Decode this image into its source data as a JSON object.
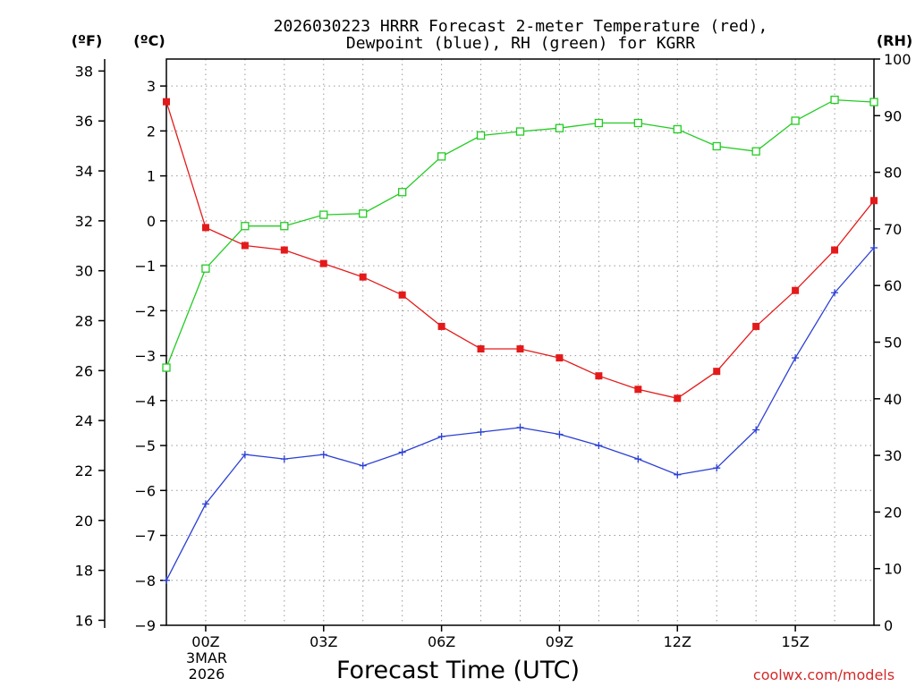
{
  "chart_data": {
    "type": "line",
    "title": [
      "2026030223 HRRR Forecast 2-meter Temperature (red),",
      "Dewpoint (blue), RH (green) for KGRR"
    ],
    "xlabel": "Forecast Time (UTC)",
    "credit": "coolwx.com/models",
    "date_label": [
      "3MAR",
      "2026"
    ],
    "axis_units": {
      "left_f": "(ºF)",
      "left_c": "(ºC)",
      "right_rh": "(RH)"
    },
    "x_hours": [
      -1,
      0,
      1,
      2,
      3,
      4,
      5,
      6,
      7,
      8,
      9,
      10,
      11,
      12,
      13,
      14,
      15,
      16,
      17
    ],
    "xlim": [
      -1,
      17
    ],
    "x_ticks": [
      {
        "hour": 0,
        "label": "00Z"
      },
      {
        "hour": 3,
        "label": "03Z"
      },
      {
        "hour": 6,
        "label": "06Z"
      },
      {
        "hour": 9,
        "label": "09Z"
      },
      {
        "hour": 12,
        "label": "12Z"
      },
      {
        "hour": 15,
        "label": "15Z"
      }
    ],
    "ylim_c": [
      -9,
      3.6
    ],
    "ylim_f": [
      15.8,
      38.48
    ],
    "ylim_rh": [
      0,
      100
    ],
    "yticks_c": [
      "3",
      "2",
      "1",
      "0",
      "−1",
      "−2",
      "−3",
      "−4",
      "−5",
      "−6",
      "−7",
      "−8",
      "−9"
    ],
    "yticks_f": [
      "38",
      "36",
      "34",
      "32",
      "30",
      "28",
      "26",
      "24",
      "22",
      "20",
      "18",
      "16"
    ],
    "yticks_rh": [
      "100",
      "90",
      "80",
      "70",
      "60",
      "50",
      "40",
      "30",
      "20",
      "10",
      "0"
    ],
    "series": [
      {
        "name": "Temperature",
        "unit": "C",
        "color": "#e41a1a",
        "marker": "filled-square",
        "values": [
          2.65,
          -0.15,
          -0.55,
          -0.65,
          -0.95,
          -1.25,
          -1.65,
          -2.35,
          -2.85,
          -2.85,
          -3.05,
          -3.45,
          -3.75,
          -3.95,
          -3.35,
          -2.35,
          -1.55,
          -0.65,
          0.45
        ]
      },
      {
        "name": "Dewpoint",
        "unit": "C",
        "color": "#2b3fd4",
        "marker": "plus",
        "values": [
          -8.0,
          -6.3,
          -5.2,
          -5.3,
          -5.2,
          -5.45,
          -5.15,
          -4.8,
          -4.7,
          -4.6,
          -4.75,
          -5.0,
          -5.3,
          -5.65,
          -5.5,
          -4.65,
          -3.05,
          -1.6,
          -0.6
        ]
      },
      {
        "name": "RH",
        "unit": "%",
        "color": "#22cc22",
        "marker": "open-square",
        "values": [
          45.5,
          63,
          70.5,
          70.5,
          72.5,
          72.7,
          76.5,
          82.8,
          86.5,
          87.2,
          87.8,
          88.7,
          88.7,
          87.6,
          84.6,
          83.7,
          89.1,
          92.8,
          92.4
        ]
      }
    ]
  }
}
